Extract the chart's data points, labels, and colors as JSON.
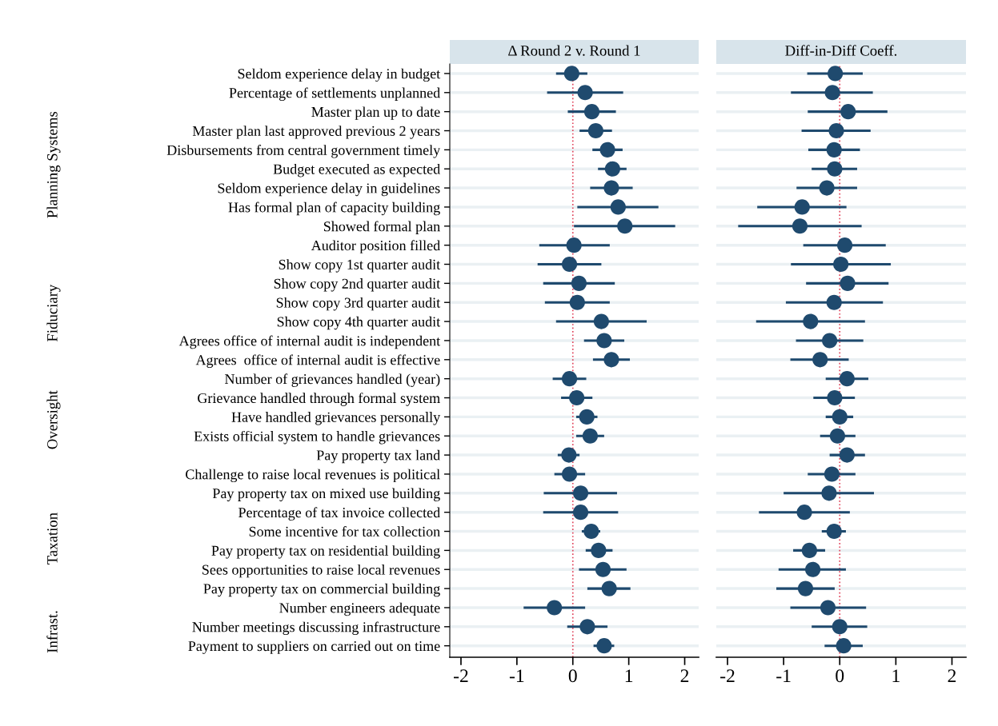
{
  "chart_data": [
    {
      "type": "scatter",
      "title": "Δ Round 2 v. Round 1",
      "categories": [
        "Seldom experience delay in budget",
        "Percentage of settlements unplanned",
        "Master plan up to date",
        "Master plan last approved previous 2 years",
        "Disbursements from central government timely",
        "Budget executed as expected",
        "Seldom experience delay in guidelines",
        "Has formal plan of capacity building",
        "Showed formal plan",
        "Auditor position filled",
        "Show copy 1st quarter audit",
        "Show copy 2nd quarter audit",
        "Show copy 3rd quarter audit",
        "Show copy 4th quarter audit",
        "Agrees office of internal audit is independent",
        "Agrees  office of internal audit is effective",
        "Number of grievances handled (year)",
        "Grievance handled through formal system",
        "Have handled grievances personally",
        "Exists official system to handle grievances",
        "Pay property tax land",
        "Challenge to raise local revenues is political",
        "Pay property tax on mixed use building",
        "Percentage of tax invoice collected",
        "Some incentive for tax collection",
        "Pay property tax on residential building",
        "Sees opportunities to raise local revenues",
        "Pay property tax on commercial building",
        "Number engineers adequate",
        "Number meetings discussing infrastructure",
        "Payment to suppliers on carried out on time"
      ],
      "series": [
        {
          "color": "#1f4a6e",
          "values": [
            -0.02,
            0.22,
            0.34,
            0.41,
            0.62,
            0.71,
            0.69,
            0.81,
            0.93,
            0.02,
            -0.06,
            0.11,
            0.08,
            0.51,
            0.56,
            0.69,
            -0.06,
            0.07,
            0.25,
            0.31,
            -0.07,
            -0.06,
            0.14,
            0.14,
            0.33,
            0.46,
            0.54,
            0.65,
            -0.33,
            0.26,
            0.56
          ],
          "errors": [
            [
              -0.3,
              0.26
            ],
            [
              -0.46,
              0.9
            ],
            [
              -0.09,
              0.77
            ],
            [
              0.12,
              0.7
            ],
            [
              0.35,
              0.89
            ],
            [
              0.45,
              0.96
            ],
            [
              0.31,
              1.07
            ],
            [
              0.08,
              1.53
            ],
            [
              0.02,
              1.83
            ],
            [
              -0.6,
              0.66
            ],
            [
              -0.63,
              0.51
            ],
            [
              -0.53,
              0.75
            ],
            [
              -0.5,
              0.66
            ],
            [
              -0.3,
              1.32
            ],
            [
              0.2,
              0.92
            ],
            [
              0.36,
              1.02
            ],
            [
              -0.36,
              0.24
            ],
            [
              -0.21,
              0.35
            ],
            [
              0.06,
              0.44
            ],
            [
              0.06,
              0.56
            ],
            [
              -0.27,
              0.12
            ],
            [
              -0.33,
              0.22
            ],
            [
              -0.52,
              0.79
            ],
            [
              -0.53,
              0.81
            ],
            [
              0.16,
              0.49
            ],
            [
              0.23,
              0.71
            ],
            [
              0.11,
              0.96
            ],
            [
              0.26,
              1.03
            ],
            [
              -0.88,
              0.22
            ],
            [
              -0.1,
              0.62
            ],
            [
              0.37,
              0.74
            ]
          ]
        }
      ],
      "xlim": [
        -2.2,
        2.25
      ],
      "xticks": [
        -2,
        -1,
        0,
        1,
        2
      ],
      "ref_lines": [
        {
          "axis": "x",
          "value": 0,
          "color": "#e0435a",
          "line_style": "dotted"
        }
      ],
      "grid": "y",
      "marker": "circle",
      "orientation": "horizontal",
      "annotations": [
        "Planning Systems",
        "Fiduciary",
        "Oversight",
        "Taxation",
        "Infrast."
      ]
    },
    {
      "type": "scatter",
      "title": "Diff-in-Diff Coeff.",
      "categories": [
        null,
        null,
        null,
        null,
        null,
        null,
        null,
        null,
        null,
        null,
        null,
        null,
        null,
        null,
        null,
        null,
        null,
        null,
        null,
        null,
        null,
        null,
        null,
        null,
        null,
        null,
        null,
        null,
        null,
        null,
        null
      ],
      "series": [
        {
          "color": "#1f4a6e",
          "values": [
            -0.08,
            -0.13,
            0.15,
            -0.06,
            -0.1,
            -0.09,
            -0.23,
            -0.67,
            -0.71,
            0.09,
            0.02,
            0.14,
            -0.1,
            -0.52,
            -0.18,
            -0.35,
            0.13,
            -0.09,
            0.0,
            -0.04,
            0.13,
            -0.14,
            -0.19,
            -0.63,
            -0.1,
            -0.54,
            -0.48,
            -0.61,
            -0.21,
            0.0,
            0.07
          ],
          "errors": [
            [
              -0.58,
              0.41
            ],
            [
              -0.87,
              0.59
            ],
            [
              -0.57,
              0.85
            ],
            [
              -0.68,
              0.55
            ],
            [
              -0.56,
              0.36
            ],
            [
              -0.5,
              0.31
            ],
            [
              -0.77,
              0.31
            ],
            [
              -1.47,
              0.12
            ],
            [
              -1.81,
              0.39
            ],
            [
              -0.65,
              0.82
            ],
            [
              -0.87,
              0.91
            ],
            [
              -0.6,
              0.87
            ],
            [
              -0.96,
              0.77
            ],
            [
              -1.49,
              0.45
            ],
            [
              -0.78,
              0.42
            ],
            [
              -0.88,
              0.16
            ],
            [
              -0.25,
              0.51
            ],
            [
              -0.47,
              0.27
            ],
            [
              -0.25,
              0.24
            ],
            [
              -0.35,
              0.28
            ],
            [
              -0.18,
              0.45
            ],
            [
              -0.57,
              0.28
            ],
            [
              -1.0,
              0.61
            ],
            [
              -1.44,
              0.18
            ],
            [
              -0.32,
              0.11
            ],
            [
              -0.83,
              -0.26
            ],
            [
              -1.09,
              0.11
            ],
            [
              -1.13,
              -0.09
            ],
            [
              -0.88,
              0.47
            ],
            [
              -0.5,
              0.49
            ],
            [
              -0.27,
              0.41
            ]
          ]
        }
      ],
      "xlim": [
        -2.2,
        2.25
      ],
      "xticks": [
        -2,
        -1,
        0,
        1,
        2
      ],
      "ref_lines": [
        {
          "axis": "x",
          "value": 0,
          "color": "#e0435a",
          "line_style": "dotted"
        }
      ],
      "grid": "y",
      "marker": "circle",
      "orientation": "horizontal",
      "tick_labels": "x"
    }
  ]
}
